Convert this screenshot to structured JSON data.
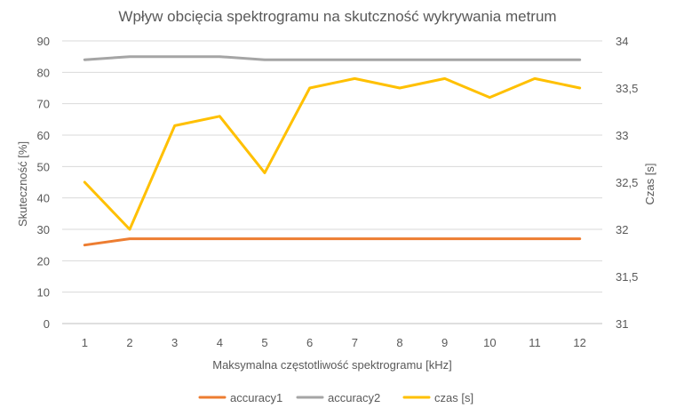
{
  "chart_data": {
    "type": "line",
    "title": "Wpływ obcięcia spektrogramu na skutczność wykrywania metrum",
    "xlabel": "Maksymalna częstotliwość spektrogramu [kHz]",
    "ylabel": "Skuteczność [%]",
    "y2label": "Czas [s]",
    "categories": [
      "1",
      "2",
      "3",
      "4",
      "5",
      "6",
      "7",
      "8",
      "9",
      "10",
      "11",
      "12"
    ],
    "ylim": [
      0,
      90
    ],
    "y2lim": [
      31,
      34
    ],
    "yticks": [
      "0",
      "10",
      "20",
      "30",
      "40",
      "50",
      "60",
      "70",
      "80",
      "90"
    ],
    "y2ticks": [
      "31",
      "31,5",
      "32",
      "32,5",
      "33",
      "33,5",
      "34"
    ],
    "grid": true,
    "legend_position": "bottom",
    "series": [
      {
        "name": "accuracy1",
        "axis": "left",
        "color": "#ED7D31",
        "values": [
          25,
          27,
          27,
          27,
          27,
          27,
          27,
          27,
          27,
          27,
          27,
          27
        ]
      },
      {
        "name": "accuracy2",
        "axis": "left",
        "color": "#A5A5A5",
        "values": [
          84,
          85,
          85,
          85,
          84,
          84,
          84,
          84,
          84,
          84,
          84,
          84
        ]
      },
      {
        "name": "czas [s]",
        "axis": "right",
        "color": "#FFC000",
        "values": [
          32.5,
          32.0,
          33.1,
          33.2,
          32.6,
          33.5,
          33.6,
          33.5,
          33.6,
          33.4,
          33.6,
          33.5
        ]
      }
    ]
  }
}
